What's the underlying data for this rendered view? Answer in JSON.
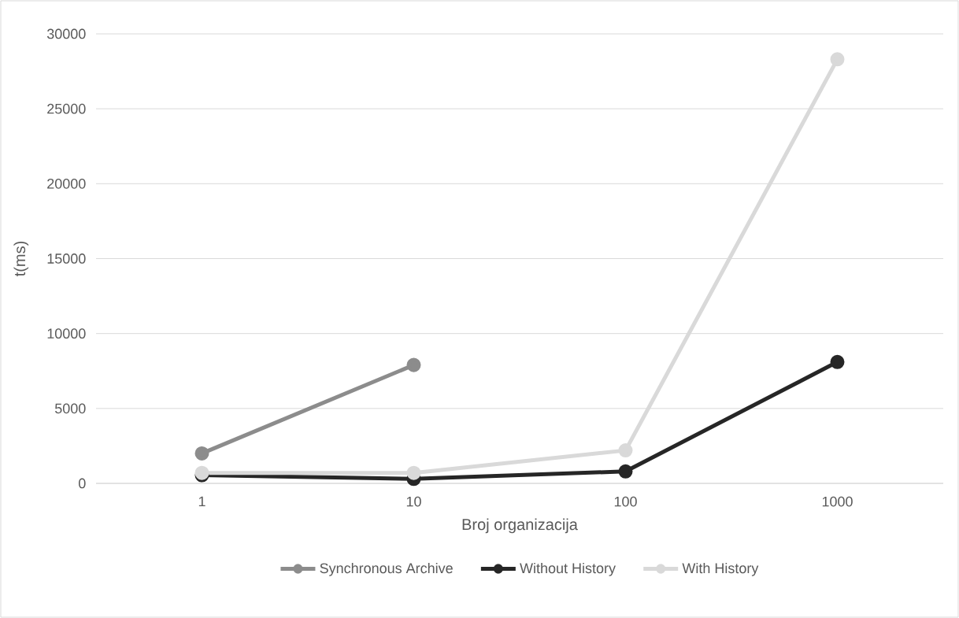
{
  "chart_data": {
    "type": "line",
    "xlabel": "Broj organizacija",
    "ylabel": "t(ms)",
    "categories": [
      "1",
      "10",
      "100",
      "1000"
    ],
    "series": [
      {
        "name": "Synchronous Archive",
        "color": "#8c8c8c",
        "values": [
          2000,
          7900,
          null,
          null
        ]
      },
      {
        "name": "Without History",
        "color": "#262626",
        "values": [
          550,
          300,
          800,
          8100
        ]
      },
      {
        "name": "With History",
        "color": "#d9d9d9",
        "values": [
          700,
          700,
          2200,
          28300
        ]
      }
    ],
    "ylim": [
      0,
      30000
    ],
    "yticks": [
      0,
      5000,
      10000,
      15000,
      20000,
      25000,
      30000
    ],
    "grid": "y",
    "legend": "bottom",
    "marker": "circle",
    "line_style": "solid"
  }
}
